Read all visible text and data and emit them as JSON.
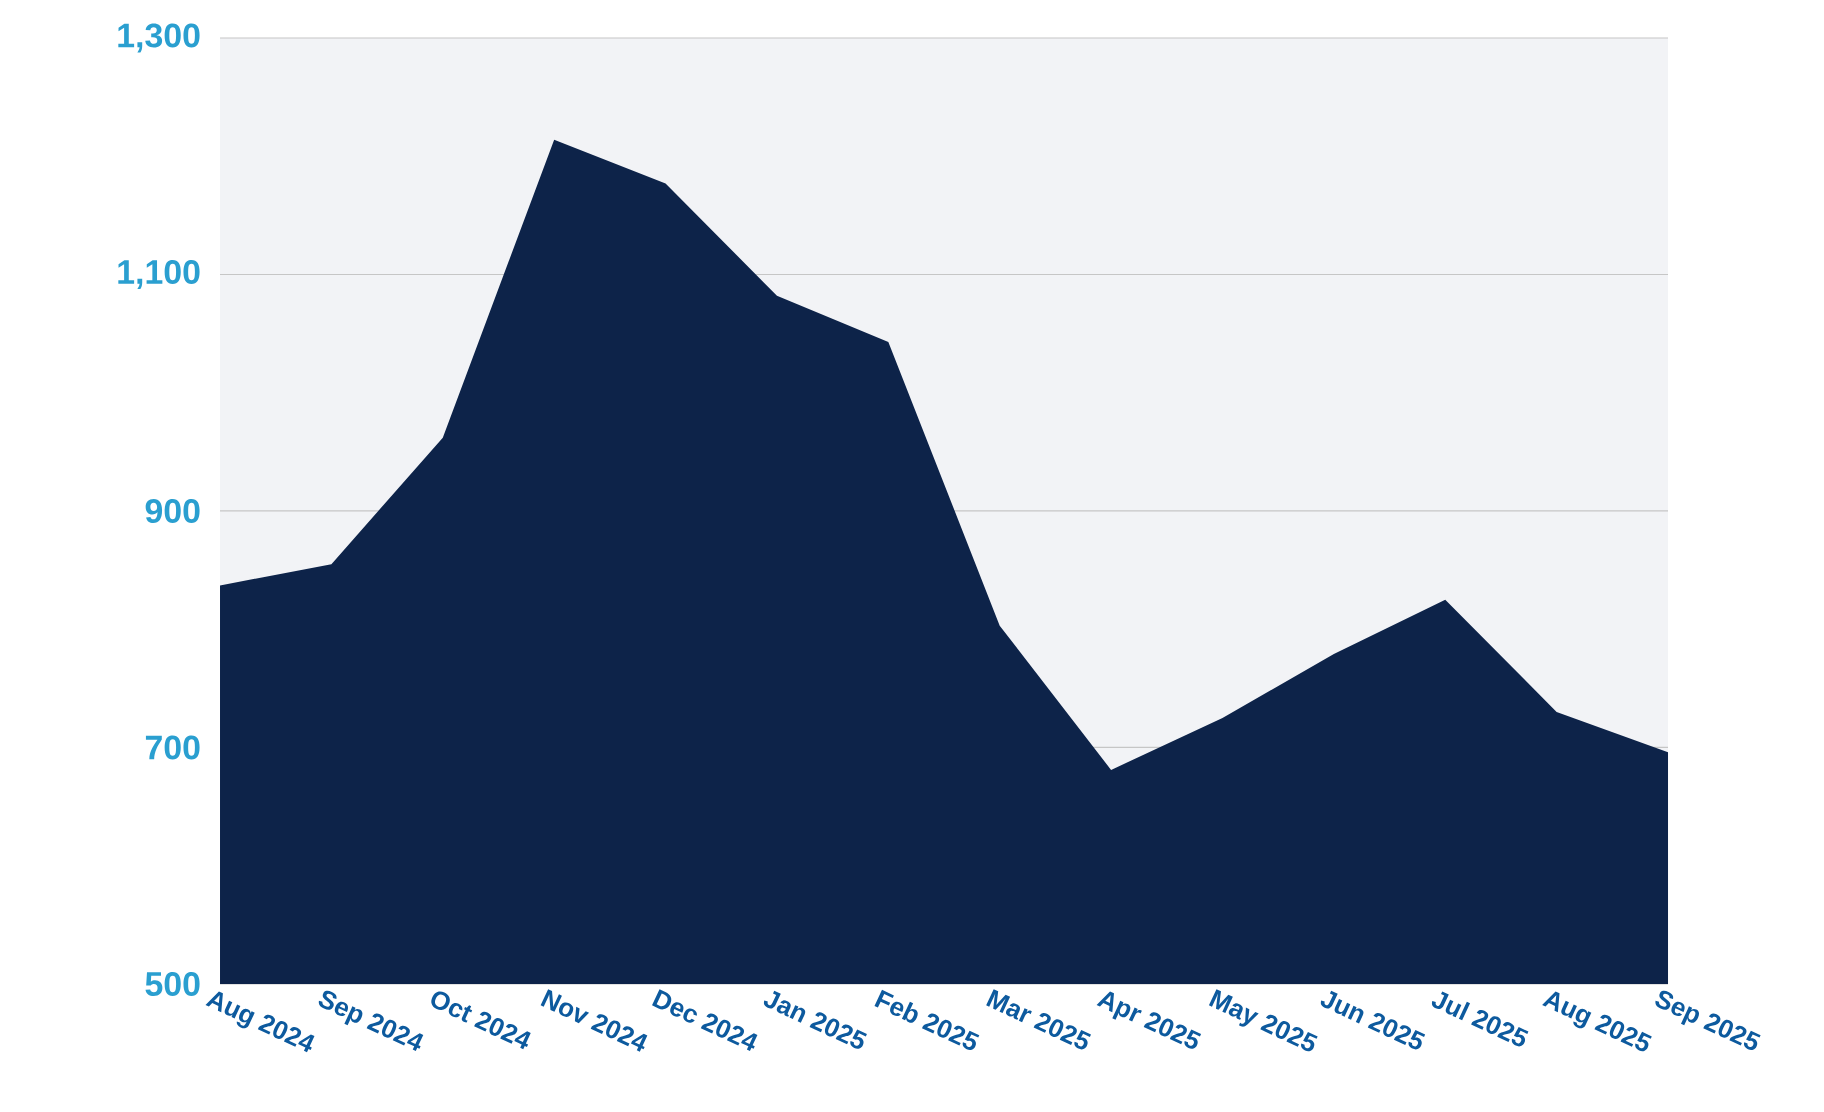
{
  "chart_data": {
    "type": "area",
    "categories": [
      "Aug 2024",
      "Sep 2024",
      "Oct 2024",
      "Nov 2024",
      "Dec 2024",
      "Jan 2025",
      "Feb 2025",
      "Mar 2025",
      "Apr 2025",
      "May 2025",
      "Jun 2025",
      "Jul 2025",
      "Aug 2025",
      "Sep 2025"
    ],
    "values": [
      837,
      855,
      962,
      1214,
      1177,
      1082,
      1043,
      803,
      681,
      725,
      779,
      825,
      730,
      696
    ],
    "color": "#0d2349",
    "ylim": [
      500,
      1300
    ],
    "yticks": [
      {
        "value": 500,
        "label": "500"
      },
      {
        "value": 700,
        "label": "700"
      },
      {
        "value": 900,
        "label": "900"
      },
      {
        "value": 1100,
        "label": "1,100"
      },
      {
        "value": 1300,
        "label": "1,300"
      }
    ],
    "grid": "y"
  }
}
